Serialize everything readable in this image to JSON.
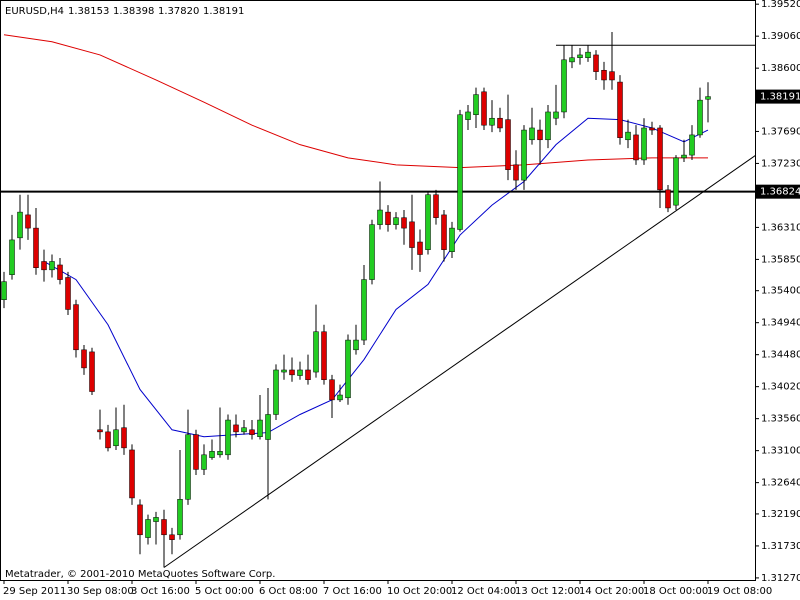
{
  "chart_data": {
    "type": "candlestick",
    "title": "EURUSD,H4",
    "last_bar_labels": [
      "1.38153",
      "1.38398",
      "1.37820",
      "1.38191"
    ],
    "footer": "Metatrader, © 2001-2010 MetaQuotes Software Corp.",
    "up_color": "#22cc22",
    "down_color": "#dd0000",
    "categories": [
      "29 Sep 2011",
      null,
      null,
      null,
      null,
      null,
      null,
      null,
      "30 Sep 08:00",
      null,
      null,
      null,
      null,
      null,
      null,
      null,
      "3 Oct 16:00",
      null,
      null,
      null,
      null,
      null,
      null,
      null,
      "5 Oct 00:00",
      null,
      null,
      null,
      null,
      null,
      null,
      null,
      "6 Oct 08:00",
      null,
      null,
      null,
      null,
      null,
      null,
      null,
      "7 Oct 16:00",
      null,
      null,
      null,
      null,
      null,
      null,
      null,
      "10 Oct 20:00",
      null,
      null,
      null,
      null,
      null,
      null,
      null,
      "12 Oct 04:00",
      null,
      null,
      null,
      null,
      null,
      null,
      null,
      "13 Oct 12:00",
      null,
      null,
      null,
      null,
      null,
      null,
      null,
      "14 Oct 20:00",
      null,
      null,
      null,
      null,
      null,
      null,
      null,
      "18 Oct 00:00",
      null,
      null,
      null,
      null,
      null,
      null,
      null,
      "19 Oct 08:00"
    ],
    "open": [
      1.3527,
      1.3563,
      1.3616,
      1.3649,
      1.363,
      1.3582,
      1.357,
      1.3577,
      1.3559,
      1.352,
      1.3455,
      1.3452,
      1.334,
      1.3337,
      1.3317,
      1.3343,
      1.3311,
      1.3232,
      1.3185,
      1.3208,
      1.3211,
      1.3189,
      1.3189,
      1.324,
      1.3333,
      1.3283,
      1.33,
      1.3304,
      1.3304,
      1.3347,
      1.3337,
      1.334,
      1.333,
      1.3326,
      1.3362,
      1.3423,
      1.3426,
      1.3418,
      1.3426,
      1.3423,
      1.3481,
      1.3412,
      1.3383,
      1.3386,
      1.3455,
      1.3469,
      1.3556,
      1.3635,
      1.3653,
      1.3635,
      1.3645,
      1.3639,
      1.361,
      1.3599,
      1.3678,
      1.3649,
      1.3596,
      1.3628,
      1.3786,
      1.3793,
      1.3826,
      1.3778,
      1.3788,
      1.3786,
      1.3721,
      1.3699,
      1.3757,
      1.3771,
      1.3757,
      1.3788,
      1.3797,
      1.3869,
      1.3875,
      1.3875,
      1.3879,
      1.3857,
      1.3855,
      1.384,
      1.3757,
      1.3764,
      1.3728,
      1.3774,
      1.3774,
      1.3685,
      1.3663,
      1.3731,
      1.3735,
      1.3764,
      1.38153
    ],
    "high": [
      1.3567,
      1.3649,
      1.3678,
      1.3678,
      1.3659,
      1.3599,
      1.3592,
      1.3587,
      1.3567,
      1.3527,
      1.3462,
      1.3458,
      1.3369,
      1.3347,
      1.3372,
      1.3376,
      1.3319,
      1.324,
      1.3218,
      1.3222,
      1.3225,
      1.3199,
      1.3311,
      1.3369,
      1.334,
      1.3319,
      1.3326,
      1.3372,
      1.3362,
      1.3362,
      1.3354,
      1.3354,
      1.339,
      1.34,
      1.3434,
      1.3448,
      1.3444,
      1.3438,
      1.3448,
      1.352,
      1.3491,
      1.3419,
      1.3405,
      1.3477,
      1.3491,
      1.3577,
      1.3642,
      1.3697,
      1.3663,
      1.3653,
      1.3656,
      1.3678,
      1.3628,
      1.3682,
      1.3685,
      1.3656,
      1.3639,
      1.38,
      1.3807,
      1.3832,
      1.3832,
      1.3814,
      1.3803,
      1.3822,
      1.3742,
      1.3778,
      1.3803,
      1.3786,
      1.3807,
      1.3836,
      1.3893,
      1.3893,
      1.3889,
      1.3893,
      1.3886,
      1.3869,
      1.3912,
      1.385,
      1.3786,
      1.3778,
      1.3788,
      1.3783,
      1.3778,
      1.3692,
      1.3735,
      1.3757,
      1.3778,
      1.3832,
      1.38398
    ],
    "low": [
      1.3515,
      1.3556,
      1.3599,
      1.3613,
      1.3563,
      1.3553,
      1.3559,
      1.3549,
      1.3505,
      1.3444,
      1.3419,
      1.339,
      1.3326,
      1.3309,
      1.3311,
      1.3304,
      1.3232,
      1.3161,
      1.3175,
      1.3175,
      1.3142,
      1.3161,
      1.3182,
      1.3232,
      1.3275,
      1.3275,
      1.3297,
      1.33,
      1.3297,
      1.3329,
      1.3333,
      1.3326,
      1.3326,
      1.324,
      1.3354,
      1.3412,
      1.3409,
      1.3412,
      1.3405,
      1.3415,
      1.3405,
      1.3357,
      1.338,
      1.3376,
      1.3448,
      1.3462,
      1.3549,
      1.3628,
      1.3625,
      1.3628,
      1.3606,
      1.357,
      1.3567,
      1.3592,
      1.3635,
      1.3582,
      1.3587,
      1.3625,
      1.3771,
      1.3774,
      1.3771,
      1.3768,
      1.3768,
      1.3699,
      1.3685,
      1.3685,
      1.375,
      1.3721,
      1.3745,
      1.3778,
      1.3788,
      1.386,
      1.3865,
      1.3869,
      1.3843,
      1.3829,
      1.3829,
      1.375,
      1.3745,
      1.3721,
      1.3721,
      1.3764,
      1.3659,
      1.3653,
      1.3656,
      1.3725,
      1.3728,
      1.376,
      1.3782
    ],
    "close": [
      1.3553,
      1.3613,
      1.3653,
      1.363,
      1.3573,
      1.357,
      1.3582,
      1.3556,
      1.3513,
      1.3455,
      1.3429,
      1.3395,
      1.3337,
      1.3314,
      1.334,
      1.3314,
      1.3242,
      1.3189,
      1.3211,
      1.3214,
      1.3189,
      1.3182,
      1.324,
      1.3333,
      1.3283,
      1.3304,
      1.3309,
      1.3309,
      1.3354,
      1.3337,
      1.3343,
      1.3333,
      1.3354,
      1.3362,
      1.3426,
      1.3426,
      1.3419,
      1.3426,
      1.3412,
      1.3481,
      1.3412,
      1.3383,
      1.339,
      1.3469,
      1.3469,
      1.3556,
      1.3635,
      1.3656,
      1.3635,
      1.3645,
      1.363,
      1.3602,
      1.3592,
      1.3678,
      1.3645,
      1.3599,
      1.363,
      1.3793,
      1.3797,
      1.3822,
      1.3778,
      1.3788,
      1.3774,
      1.3714,
      1.3699,
      1.3771,
      1.3774,
      1.3757,
      1.3797,
      1.3797,
      1.3872,
      1.3875,
      1.3879,
      1.3883,
      1.3855,
      1.3843,
      1.3843,
      1.376,
      1.3768,
      1.3728,
      1.3774,
      1.3771,
      1.3685,
      1.3659,
      1.3731,
      1.3735,
      1.3764,
      1.3814,
      1.38191
    ],
    "moving_averages": [
      {
        "color": "#0000cc",
        "x": [
          5,
          9,
          13,
          17,
          21,
          25,
          29,
          33,
          37,
          41,
          45,
          49,
          53,
          57,
          61,
          65,
          69,
          73,
          77,
          81,
          85,
          88
        ],
        "values": [
          1.3582,
          1.3556,
          1.3491,
          1.3398,
          1.334,
          1.333,
          1.3333,
          1.3336,
          1.3362,
          1.3383,
          1.3441,
          1.3513,
          1.3549,
          1.362,
          1.3663,
          1.3697,
          1.375,
          1.3788,
          1.3786,
          1.3774,
          1.3754,
          1.3771
        ]
      },
      {
        "color": "#dd0000",
        "x": [
          0,
          6,
          12,
          19,
          25,
          31,
          37,
          43,
          49,
          57,
          65,
          73,
          81,
          88
        ],
        "values": [
          1.3908,
          1.3898,
          1.3879,
          1.3843,
          1.3811,
          1.3778,
          1.375,
          1.3731,
          1.3721,
          1.3717,
          1.3721,
          1.3728,
          1.3731,
          1.3731
        ]
      }
    ],
    "trendline": {
      "x": [
        20,
        94
      ],
      "values": [
        1.3142,
        1.3735
      ]
    },
    "resistance": {
      "x": [
        69,
        94
      ],
      "values": [
        1.3893,
        1.3893
      ]
    },
    "level": {
      "value": 1.36824,
      "label": "1.36824"
    },
    "current_price": {
      "value": 1.38191,
      "label": "1.38191"
    },
    "ylim": [
      1.3124,
      1.3958
    ],
    "yticks": [
      {
        "value": 1.3952,
        "label": "1.39520"
      },
      {
        "value": 1.3906,
        "label": "1.39060"
      },
      {
        "value": 1.386,
        "label": "1.38600"
      },
      {
        "value": 1.3769,
        "label": "1.37690"
      },
      {
        "value": 1.3723,
        "label": "1.37230"
      },
      {
        "value": 1.3631,
        "label": "1.36310"
      },
      {
        "value": 1.3585,
        "label": "1.35850"
      },
      {
        "value": 1.354,
        "label": "1.35400"
      },
      {
        "value": 1.3494,
        "label": "1.34940"
      },
      {
        "value": 1.3448,
        "label": "1.34480"
      },
      {
        "value": 1.3402,
        "label": "1.34020"
      },
      {
        "value": 1.3356,
        "label": "1.33560"
      },
      {
        "value": 1.331,
        "label": "1.33100"
      },
      {
        "value": 1.3264,
        "label": "1.32640"
      },
      {
        "value": 1.3219,
        "label": "1.32190"
      },
      {
        "value": 1.3173,
        "label": "1.31730"
      },
      {
        "value": 1.3127,
        "label": "1.31270"
      }
    ]
  }
}
